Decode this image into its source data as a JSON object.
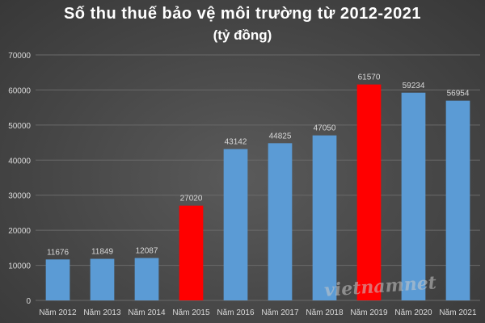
{
  "chart_data": {
    "type": "bar",
    "title": "Số thu thuế bảo vệ môi trường từ 2012-2021",
    "subtitle": "(tỷ đồng)",
    "xlabel": "",
    "ylabel": "",
    "categories": [
      "Năm 2012",
      "Năm 2013",
      "Năm 2014",
      "Năm 2015",
      "Năm 2016",
      "Năm 2017",
      "Năm 2018",
      "Năm 2019",
      "Năm 2020",
      "Năm 2021"
    ],
    "values": [
      11676,
      11849,
      12087,
      27020,
      43142,
      44825,
      47050,
      61570,
      59234,
      56954
    ],
    "highlight": [
      "Năm 2015",
      "Năm 2019"
    ],
    "ylim": [
      0,
      70000
    ],
    "yticks": [
      0,
      10000,
      20000,
      30000,
      40000,
      50000,
      60000,
      70000
    ],
    "grid": true,
    "legend": "none",
    "colors": {
      "bar": "#5b9bd5",
      "highlight": "#ff0000",
      "grid": "#6a6a6a",
      "text": "#ffffff",
      "tick_text": "#d9d9d9"
    }
  },
  "watermark": "vietnamnet"
}
